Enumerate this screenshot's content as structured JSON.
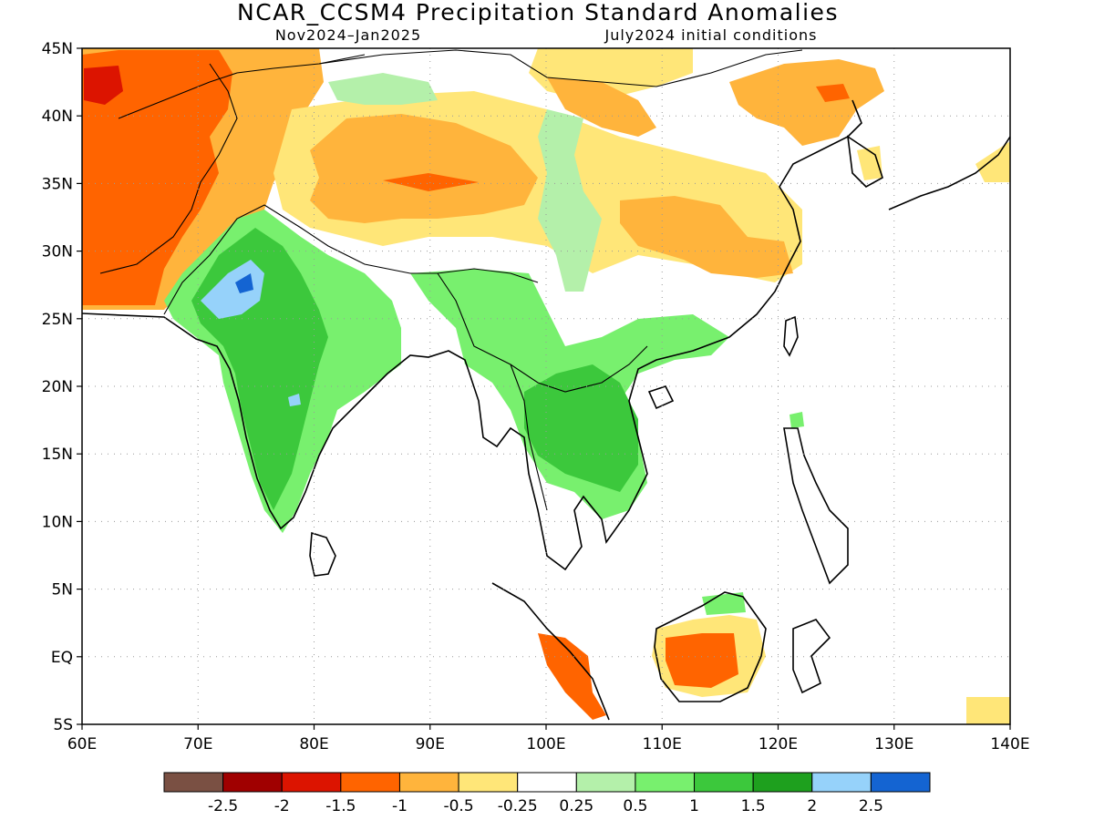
{
  "title": "NCAR_CCSM4 Precipitation Standard Anomalies",
  "subtitle_left": "Nov2024–Jan2025",
  "subtitle_right": "July2024 initial conditions",
  "lon_labels": [
    "60E",
    "70E",
    "80E",
    "90E",
    "100E",
    "110E",
    "120E",
    "130E",
    "140E"
  ],
  "lat_labels": [
    "45N",
    "40N",
    "35N",
    "30N",
    "25N",
    "20N",
    "15N",
    "10N",
    "5N",
    "EQ",
    "5S"
  ],
  "colorbar": {
    "colors": [
      "#7a5043",
      "#a00000",
      "#dc1400",
      "#ff6400",
      "#ffb43c",
      "#ffe678",
      "#ffffff",
      "#b4f0aa",
      "#78f06e",
      "#3cc83c",
      "#1ea01e",
      "#96d2fa",
      "#1464d2"
    ],
    "labels": [
      "-2.5",
      "-2",
      "-1.5",
      "-1",
      "-0.5",
      "-0.25",
      "0.25",
      "0.5",
      "1",
      "1.5",
      "2",
      "2.5"
    ]
  },
  "colors": {
    "strong_dry": "#ff6400",
    "moderate_dry": "#ffb43c",
    "weak_dry": "#ffe678",
    "weak_wet": "#b4f0aa",
    "moderate_wet": "#78f06e",
    "wet": "#3cc83c",
    "strong_wet": "#1ea01e",
    "very_wet": "#96d2fa",
    "extreme_wet": "#1464d2",
    "severe_dry": "#dc1400"
  }
}
